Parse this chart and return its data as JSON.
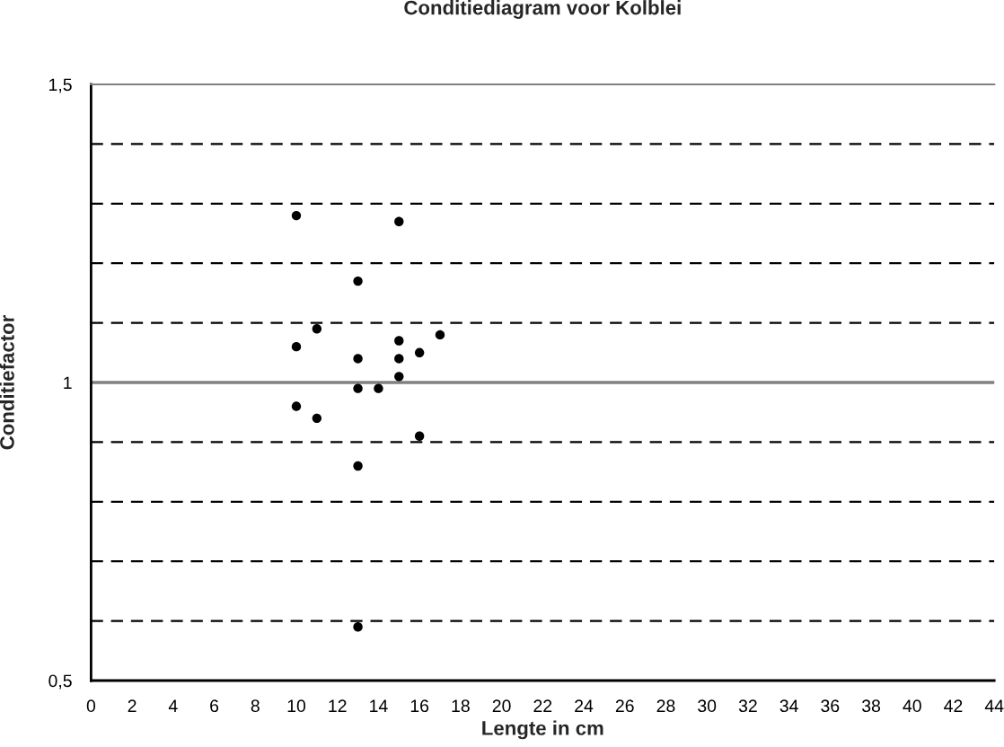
{
  "chart_data": {
    "type": "scatter",
    "title": "Conditiediagram voor Kolblei",
    "xlabel": "Lengte in cm",
    "ylabel": "Conditiefactor",
    "series": [
      {
        "color": "#000000",
        "x": [
          10,
          10,
          10,
          11,
          11,
          13,
          13,
          13,
          13,
          13,
          14,
          15,
          15,
          15,
          15,
          16,
          16,
          17
        ],
        "values": [
          1.28,
          1.06,
          0.96,
          1.09,
          0.94,
          1.17,
          1.04,
          0.99,
          0.86,
          0.59,
          0.99,
          1.27,
          1.07,
          1.04,
          1.01,
          1.05,
          0.91,
          1.08
        ]
      }
    ],
    "marker": "circle",
    "xlim": [
      0,
      44
    ],
    "xticks": [
      0,
      2,
      4,
      6,
      8,
      10,
      12,
      14,
      16,
      18,
      20,
      22,
      24,
      26,
      28,
      30,
      32,
      34,
      36,
      38,
      40,
      42,
      44
    ],
    "ylim": [
      0.5,
      1.5
    ],
    "yticks": [
      {
        "value": 0.5,
        "label": "0,5"
      },
      {
        "value": 0.6,
        "label": null
      },
      {
        "value": 0.7,
        "label": null
      },
      {
        "value": 0.8,
        "label": null
      },
      {
        "value": 0.9,
        "label": null
      },
      {
        "value": 1,
        "label": "1"
      },
      {
        "value": 1.1,
        "label": null
      },
      {
        "value": 1.2,
        "label": null
      },
      {
        "value": 1.3,
        "label": null
      },
      {
        "value": 1.4,
        "label": null
      },
      {
        "value": 1.5,
        "label": "1,5"
      }
    ],
    "grid": "y",
    "line_style": "dashed",
    "ref_lines": [
      {
        "axis": "y",
        "value": 1,
        "label": null,
        "color": "#808080",
        "line_style": "solid"
      }
    ]
  }
}
